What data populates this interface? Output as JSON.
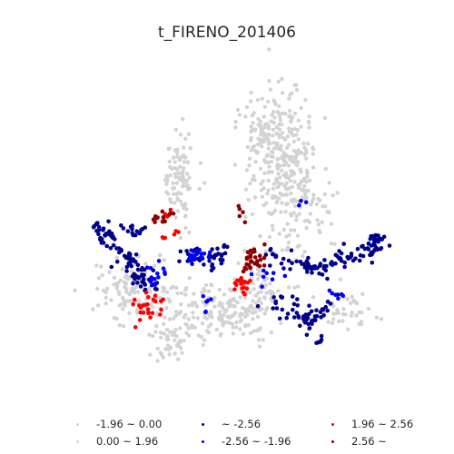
{
  "title": "t_FIRENO_201406",
  "legend": [
    {
      "label": "-1.96 ~ 0.00",
      "color": "#d3d3d3"
    },
    {
      "label": "0.00 ~ 1.96",
      "color": "#d3d3d3"
    },
    {
      "label": "~ -2.56",
      "color": "#00008b"
    },
    {
      "label": "-2.56 ~ -1.96",
      "color": "#0000ff"
    },
    {
      "label": "1.96 ~ 2.56",
      "color": "#ff0000"
    },
    {
      "label": "2.56 ~",
      "color": "#8b0000"
    }
  ],
  "map": {
    "type": "point-map",
    "axes_visible": false,
    "categories": [
      "-1.96 ~ 0.00",
      "0.00 ~ 1.96",
      "~ -2.56",
      "-2.56 ~ -1.96",
      "1.96 ~ 2.56",
      "2.56 ~"
    ]
  }
}
